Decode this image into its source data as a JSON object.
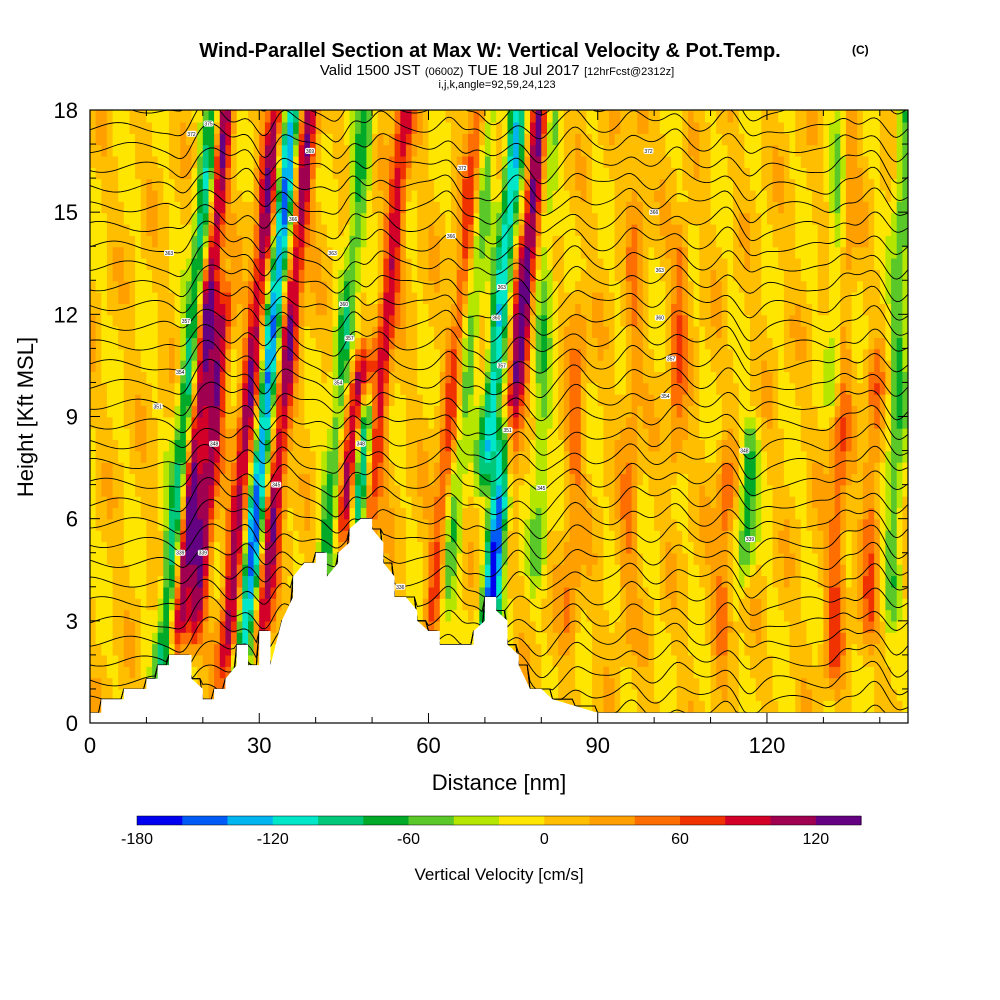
{
  "chart_data": {
    "type": "heatmap",
    "title": "Wind-Parallel Section at Max W: Vertical Velocity & Pot.Temp.",
    "title_tag": "(C)",
    "subtitle_parts": [
      "Valid 1500 JST",
      "(0600Z)",
      "TUE 18 Jul 2017",
      "[12hrFcst@2312z]"
    ],
    "subtitle2": "i,j,k,angle=92,59,24,123",
    "xlabel": "Distance [nm]",
    "ylabel": "Height [Kft MSL]",
    "xlim": [
      0,
      145
    ],
    "ylim": [
      0,
      18
    ],
    "xticks": [
      0,
      30,
      60,
      90,
      120
    ],
    "yticks": [
      0,
      3,
      6,
      9,
      12,
      15,
      18
    ],
    "colorbar": {
      "label": "Vertical Velocity [cm/s]",
      "ticks": [
        -180,
        -120,
        -60,
        0,
        60,
        120
      ],
      "range": [
        -180,
        140
      ],
      "colors": [
        "#0000f0",
        "#005af5",
        "#00b4f0",
        "#00e6c8",
        "#00c87a",
        "#00aa28",
        "#5ac828",
        "#b4e600",
        "#ffe600",
        "#ffbe00",
        "#ffa000",
        "#ff6e00",
        "#f03200",
        "#d20028",
        "#a00050",
        "#640082"
      ]
    },
    "updrafts": [
      {
        "x": 19,
        "bottom": 3,
        "top": 18,
        "peak": 130
      },
      {
        "x": 22,
        "bottom": 3,
        "top": 12,
        "peak": 110
      },
      {
        "x": 28,
        "bottom": 2,
        "top": 18,
        "peak": 110
      },
      {
        "x": 34,
        "bottom": 3,
        "top": 18,
        "peak": 110
      },
      {
        "x": 47,
        "bottom": 6,
        "top": 10,
        "peak": 120
      },
      {
        "x": 51,
        "bottom": 6,
        "top": 18,
        "peak": 90
      },
      {
        "x": 64,
        "bottom": 3,
        "top": 18,
        "peak": 70
      },
      {
        "x": 75,
        "bottom": 8,
        "top": 18,
        "peak": 130
      },
      {
        "x": 86,
        "bottom": 3,
        "top": 12,
        "peak": 40
      },
      {
        "x": 96,
        "bottom": 3,
        "top": 18,
        "peak": 30
      },
      {
        "x": 104,
        "bottom": 8,
        "top": 14,
        "peak": 45
      },
      {
        "x": 113,
        "bottom": 3,
        "top": 7,
        "peak": 50
      },
      {
        "x": 133,
        "bottom": 2,
        "top": 18,
        "peak": 55
      },
      {
        "x": 139,
        "bottom": 3,
        "top": 10,
        "peak": 45
      }
    ],
    "downdrafts": [
      {
        "x": 17,
        "bottom": 2,
        "top": 18,
        "peak": -110
      },
      {
        "x": 31,
        "bottom": 2,
        "top": 18,
        "peak": -150
      },
      {
        "x": 44,
        "bottom": 5,
        "top": 18,
        "peak": -70
      },
      {
        "x": 49,
        "bottom": 6,
        "top": 9,
        "peak": -130
      },
      {
        "x": 66,
        "bottom": 3,
        "top": 18,
        "peak": -60
      },
      {
        "x": 74,
        "bottom": 3,
        "top": 8,
        "peak": -170
      },
      {
        "x": 71,
        "bottom": 8,
        "top": 18,
        "peak": -120
      },
      {
        "x": 80,
        "bottom": 5,
        "top": 18,
        "peak": -50
      },
      {
        "x": 117,
        "bottom": 5,
        "top": 8,
        "peak": -70
      },
      {
        "x": 132,
        "bottom": 10,
        "top": 18,
        "peak": -60
      },
      {
        "x": 143,
        "bottom": 4,
        "top": 18,
        "peak": -60
      }
    ],
    "terrain": [
      [
        0,
        0.3
      ],
      [
        2,
        0.3
      ],
      [
        2,
        0.7
      ],
      [
        6,
        0.7
      ],
      [
        6,
        1.0
      ],
      [
        10,
        1.0
      ],
      [
        10,
        1.3
      ],
      [
        12,
        1.3
      ],
      [
        12,
        1.7
      ],
      [
        14,
        1.7
      ],
      [
        14,
        2.0
      ],
      [
        18,
        2.0
      ],
      [
        18,
        1.3
      ],
      [
        20,
        1.0
      ],
      [
        20,
        0.7
      ],
      [
        22,
        0.7
      ],
      [
        22,
        1.0
      ],
      [
        24,
        1.0
      ],
      [
        24,
        1.3
      ],
      [
        26,
        1.7
      ],
      [
        26,
        2.3
      ],
      [
        28,
        2.3
      ],
      [
        28,
        1.7
      ],
      [
        30,
        1.7
      ],
      [
        30,
        2.7
      ],
      [
        32,
        2.7
      ],
      [
        32,
        1.7
      ],
      [
        34,
        3.0
      ],
      [
        36,
        3.7
      ],
      [
        36,
        4.3
      ],
      [
        38,
        4.7
      ],
      [
        40,
        4.7
      ],
      [
        40,
        5.0
      ],
      [
        42,
        5.0
      ],
      [
        42,
        4.3
      ],
      [
        44,
        4.7
      ],
      [
        44,
        5.0
      ],
      [
        46,
        5.3
      ],
      [
        46,
        5.7
      ],
      [
        48,
        6.0
      ],
      [
        50,
        6.0
      ],
      [
        50,
        5.7
      ],
      [
        52,
        5.3
      ],
      [
        52,
        4.7
      ],
      [
        54,
        4.3
      ],
      [
        54,
        3.7
      ],
      [
        56,
        3.7
      ],
      [
        58,
        3.3
      ],
      [
        58,
        3.0
      ],
      [
        60,
        2.7
      ],
      [
        62,
        2.7
      ],
      [
        62,
        2.3
      ],
      [
        64,
        2.3
      ],
      [
        66,
        2.3
      ],
      [
        68,
        2.3
      ],
      [
        68,
        2.7
      ],
      [
        70,
        3.0
      ],
      [
        70,
        3.7
      ],
      [
        72,
        3.7
      ],
      [
        72,
        3.3
      ],
      [
        74,
        3.0
      ],
      [
        74,
        2.3
      ],
      [
        76,
        2.0
      ],
      [
        76,
        1.7
      ],
      [
        78,
        1.0
      ],
      [
        80,
        1.0
      ],
      [
        82,
        0.7
      ],
      [
        86,
        0.5
      ],
      [
        90,
        0.3
      ],
      [
        94,
        0.3
      ],
      [
        145,
        0.3
      ]
    ],
    "contour_labels": [
      {
        "x": 18,
        "y": 17.3,
        "text": "372"
      },
      {
        "x": 21,
        "y": 17.6,
        "text": "375"
      },
      {
        "x": 14,
        "y": 13.8,
        "text": "363"
      },
      {
        "x": 17,
        "y": 11.8,
        "text": "357"
      },
      {
        "x": 16,
        "y": 10.3,
        "text": "354"
      },
      {
        "x": 12,
        "y": 9.3,
        "text": "351"
      },
      {
        "x": 22,
        "y": 8.2,
        "text": "348"
      },
      {
        "x": 33,
        "y": 7.0,
        "text": "345"
      },
      {
        "x": 16,
        "y": 5.0,
        "text": "339"
      },
      {
        "x": 20,
        "y": 5.0,
        "text": "339"
      },
      {
        "x": 39,
        "y": 16.8,
        "text": "369"
      },
      {
        "x": 36,
        "y": 14.8,
        "text": "366"
      },
      {
        "x": 43,
        "y": 13.8,
        "text": "363"
      },
      {
        "x": 45,
        "y": 12.3,
        "text": "360"
      },
      {
        "x": 46,
        "y": 11.3,
        "text": "357"
      },
      {
        "x": 44,
        "y": 10.0,
        "text": "354"
      },
      {
        "x": 48,
        "y": 8.2,
        "text": "348"
      },
      {
        "x": 55,
        "y": 4.0,
        "text": "336"
      },
      {
        "x": 66,
        "y": 16.3,
        "text": "372"
      },
      {
        "x": 64,
        "y": 14.3,
        "text": "366"
      },
      {
        "x": 73,
        "y": 12.8,
        "text": "363"
      },
      {
        "x": 72,
        "y": 11.9,
        "text": "360"
      },
      {
        "x": 73,
        "y": 10.5,
        "text": "357"
      },
      {
        "x": 74,
        "y": 8.6,
        "text": "351"
      },
      {
        "x": 80,
        "y": 6.9,
        "text": "345"
      },
      {
        "x": 99,
        "y": 16.8,
        "text": "372"
      },
      {
        "x": 100,
        "y": 15.0,
        "text": "366"
      },
      {
        "x": 101,
        "y": 13.3,
        "text": "363"
      },
      {
        "x": 101,
        "y": 11.9,
        "text": "360"
      },
      {
        "x": 103,
        "y": 10.7,
        "text": "357"
      },
      {
        "x": 102,
        "y": 9.6,
        "text": "354"
      },
      {
        "x": 116,
        "y": 8.0,
        "text": "348"
      },
      {
        "x": 117,
        "y": 5.4,
        "text": "339"
      }
    ]
  }
}
